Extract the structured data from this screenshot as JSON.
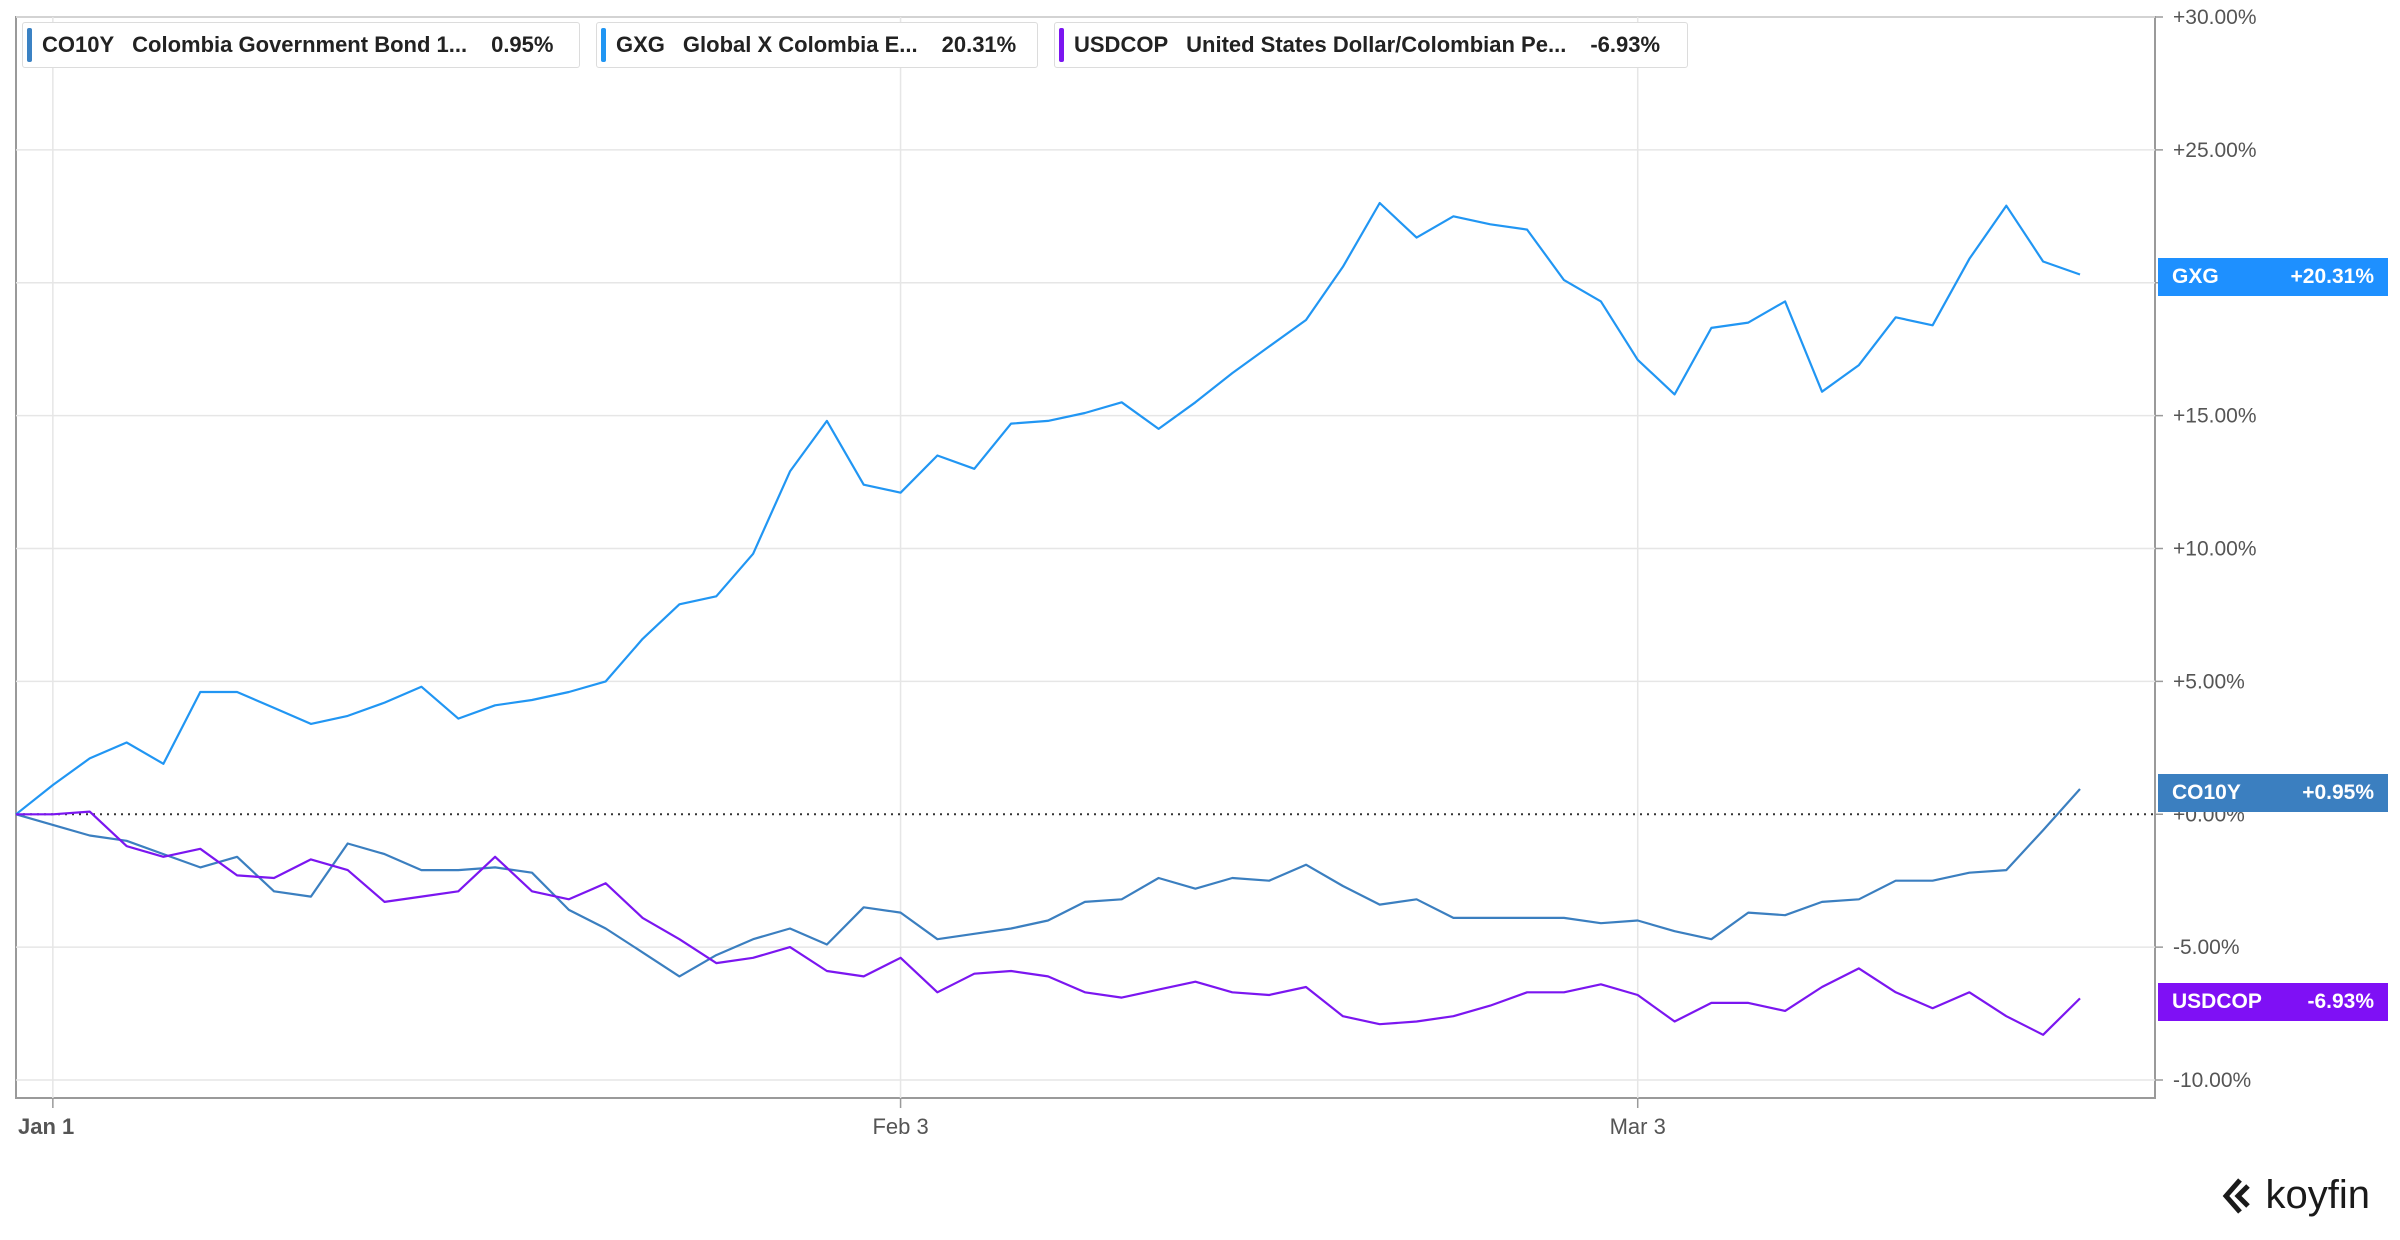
{
  "legend": [
    {
      "symbol": "CO10Y",
      "name": "Colombia Government Bond 1...",
      "value": "0.95%",
      "color": "#3b82c4"
    },
    {
      "symbol": "GXG",
      "name": "Global X Colombia E...",
      "value": "20.31%",
      "color": "#2196f3"
    },
    {
      "symbol": "USDCOP",
      "name": "United States Dollar/Colombian Pe...",
      "value": "-6.93%",
      "color": "#7b16f0"
    }
  ],
  "tags": [
    {
      "symbol": "GXG",
      "value": "+20.31%",
      "color": "#1e90ff"
    },
    {
      "symbol": "CO10Y",
      "value": "+0.95%",
      "color": "#3b7fc0"
    },
    {
      "symbol": "USDCOP",
      "value": "-6.93%",
      "color": "#7f10f5"
    }
  ],
  "brand": {
    "name": "koyfin"
  },
  "chart_data": {
    "type": "line",
    "y_ticks": [
      "+30.00%",
      "+25.00%",
      "+20.00%",
      "+15.00%",
      "+10.00%",
      "+5.00%",
      "+0.00%",
      "-5.00%",
      "-10.00%"
    ],
    "y_tick_values": [
      30,
      25,
      20,
      15,
      10,
      5,
      0,
      -5,
      -10
    ],
    "ylim": [
      -10.5,
      30
    ],
    "x_ticks": [
      {
        "label": "Jan 1",
        "index": 1
      },
      {
        "label": "Feb 3",
        "index": 24
      },
      {
        "label": "Mar 3",
        "index": 44
      }
    ],
    "n_points": 57,
    "zero_line": true,
    "series": [
      {
        "name": "GXG",
        "color": "#2196f3",
        "values": [
          0,
          1.1,
          2.1,
          2.7,
          1.9,
          4.6,
          4.6,
          4.0,
          3.4,
          3.7,
          4.2,
          4.8,
          3.6,
          4.1,
          4.3,
          4.6,
          5.0,
          6.6,
          7.9,
          8.2,
          9.8,
          12.9,
          14.8,
          12.4,
          12.1,
          13.5,
          13.0,
          14.7,
          14.8,
          15.1,
          15.5,
          14.5,
          15.5,
          16.6,
          17.6,
          18.6,
          20.6,
          23.0,
          21.7,
          22.5,
          22.2,
          22.0,
          20.1,
          19.3,
          17.1,
          15.8,
          18.3,
          18.5,
          19.3,
          15.9,
          16.9,
          18.7,
          18.4,
          20.9,
          22.9,
          20.8,
          20.31
        ]
      },
      {
        "name": "CO10Y",
        "color": "#3b7fc0",
        "values": [
          0,
          -0.4,
          -0.8,
          -1.0,
          -1.5,
          -2.0,
          -1.6,
          -2.9,
          -3.1,
          -1.1,
          -1.5,
          -2.1,
          -2.1,
          -2.0,
          -2.2,
          -3.6,
          -4.3,
          -5.2,
          -6.1,
          -5.3,
          -4.7,
          -4.3,
          -4.9,
          -3.5,
          -3.7,
          -4.7,
          -4.5,
          -4.3,
          -4.0,
          -3.3,
          -3.2,
          -2.4,
          -2.8,
          -2.4,
          -2.5,
          -1.9,
          -2.7,
          -3.4,
          -3.2,
          -3.9,
          -3.9,
          -3.9,
          -3.9,
          -4.1,
          -4.0,
          -4.4,
          -4.7,
          -3.7,
          -3.8,
          -3.3,
          -3.2,
          -2.5,
          -2.5,
          -2.2,
          -2.1,
          -0.6,
          0.95
        ]
      },
      {
        "name": "USDCOP",
        "color": "#7b16f0",
        "values": [
          0,
          0,
          0.1,
          -1.2,
          -1.6,
          -1.3,
          -2.3,
          -2.4,
          -1.7,
          -2.1,
          -3.3,
          -3.1,
          -2.9,
          -1.6,
          -2.9,
          -3.2,
          -2.6,
          -3.9,
          -4.7,
          -5.6,
          -5.4,
          -5.0,
          -5.9,
          -6.1,
          -5.4,
          -6.7,
          -6.0,
          -5.9,
          -6.1,
          -6.7,
          -6.9,
          -6.6,
          -6.3,
          -6.7,
          -6.8,
          -6.5,
          -7.6,
          -7.9,
          -7.8,
          -7.6,
          -7.2,
          -6.7,
          -6.7,
          -6.4,
          -6.8,
          -7.8,
          -7.1,
          -7.1,
          -7.4,
          -6.5,
          -5.8,
          -6.7,
          -7.3,
          -6.7,
          -7.6,
          -8.3,
          -6.93
        ]
      }
    ]
  }
}
